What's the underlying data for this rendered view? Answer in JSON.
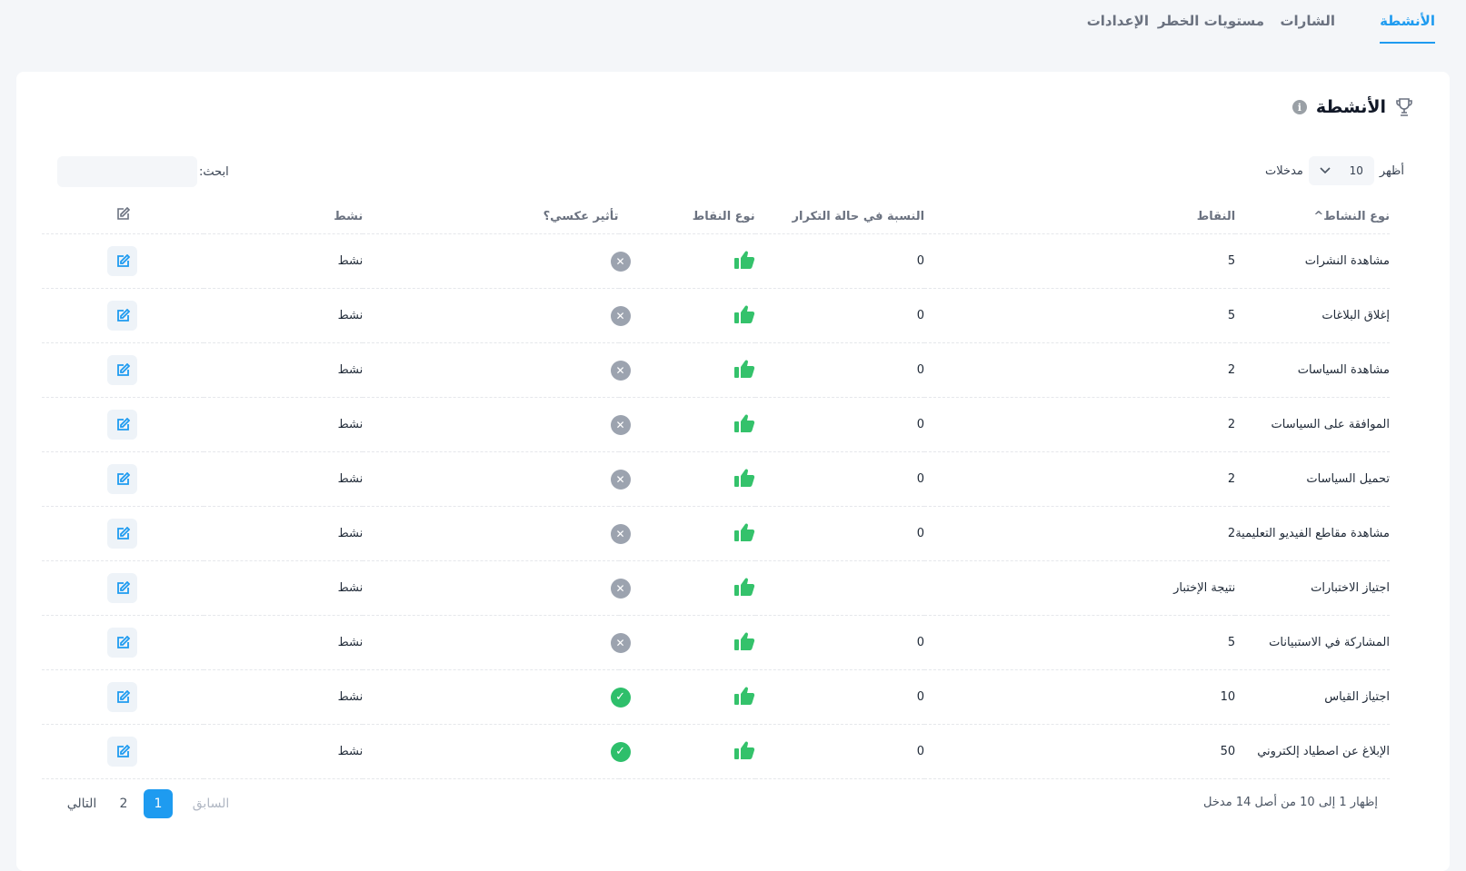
{
  "tabs": [
    {
      "label": "الأنشطة",
      "active": true
    },
    {
      "label": "الشارات",
      "active": false
    },
    {
      "label": "مستويات الخطر",
      "active": false
    },
    {
      "label": "الإعدادات",
      "active": false
    }
  ],
  "card": {
    "title": "الأنشطة",
    "info_icon": "info-icon",
    "title_icon": "trophy-icon"
  },
  "controls": {
    "show_label": "أظهر",
    "entries_value": "10",
    "entries_label": "مدخلات",
    "search_label": "ابحث:",
    "search_value": ""
  },
  "table": {
    "headers": {
      "activity_type": "نوع النشاط^",
      "points": "النقاط",
      "repeat_ratio": "النسبة في حالة التكرار",
      "points_type": "نوع النقاط",
      "reverse_effect": "تأثير عكسي؟",
      "active": "نشط",
      "edit_icon": "edit-icon"
    },
    "rows": [
      {
        "activity": "مشاهدة النشرات",
        "points": "5",
        "ratio": "0",
        "reverse": false,
        "status": "نشط"
      },
      {
        "activity": "إغلاق البلاغات",
        "points": "5",
        "ratio": "0",
        "reverse": false,
        "status": "نشط"
      },
      {
        "activity": "مشاهدة السياسات",
        "points": "2",
        "ratio": "0",
        "reverse": false,
        "status": "نشط"
      },
      {
        "activity": "الموافقة على السياسات",
        "points": "2",
        "ratio": "0",
        "reverse": false,
        "status": "نشط"
      },
      {
        "activity": "تحميل السياسات",
        "points": "2",
        "ratio": "0",
        "reverse": false,
        "status": "نشط"
      },
      {
        "activity": "مشاهدة مقاطع الفيديو التعليمية",
        "points": "2",
        "ratio": "0",
        "reverse": false,
        "status": "نشط"
      },
      {
        "activity": "اجتياز الاختبارات",
        "points": "نتيجة الإختبار",
        "ratio": "",
        "reverse": false,
        "status": "نشط"
      },
      {
        "activity": "المشاركة في الاستبيانات",
        "points": "5",
        "ratio": "0",
        "reverse": false,
        "status": "نشط"
      },
      {
        "activity": "اجتياز القياس",
        "points": "10",
        "ratio": "0",
        "reverse": true,
        "status": "نشط"
      },
      {
        "activity": "الإبلاغ عن اصطياد إلكتروني",
        "points": "50",
        "ratio": "0",
        "reverse": true,
        "status": "نشط"
      }
    ]
  },
  "footer": {
    "info": "إظهار 1 إلى 10 من أصل 14 مدخل",
    "prev": "السابق",
    "page1": "1",
    "page2": "2",
    "next": "التالي"
  },
  "colors": {
    "accent": "#1e9bf0",
    "success": "#2ebf6b",
    "thumb": "#34c26b",
    "muted": "#9ca3af"
  }
}
